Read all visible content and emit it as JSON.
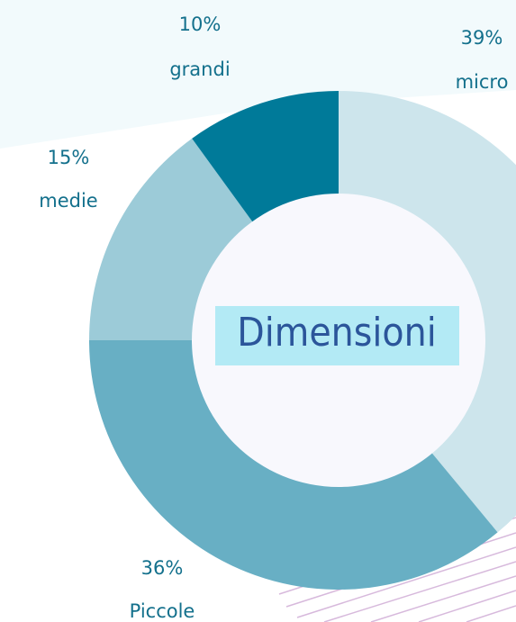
{
  "chart_data": {
    "type": "donut",
    "title": "Dimensioni",
    "categories": [
      "micro",
      "Piccole",
      "medie",
      "grandi"
    ],
    "values": [
      39,
      36,
      15,
      10
    ],
    "value_labels": [
      "39%",
      "36%",
      "15%",
      "10%"
    ],
    "colors": [
      "#cde5ec",
      "#68afc4",
      "#9ccbd8",
      "#007a99"
    ]
  }
}
